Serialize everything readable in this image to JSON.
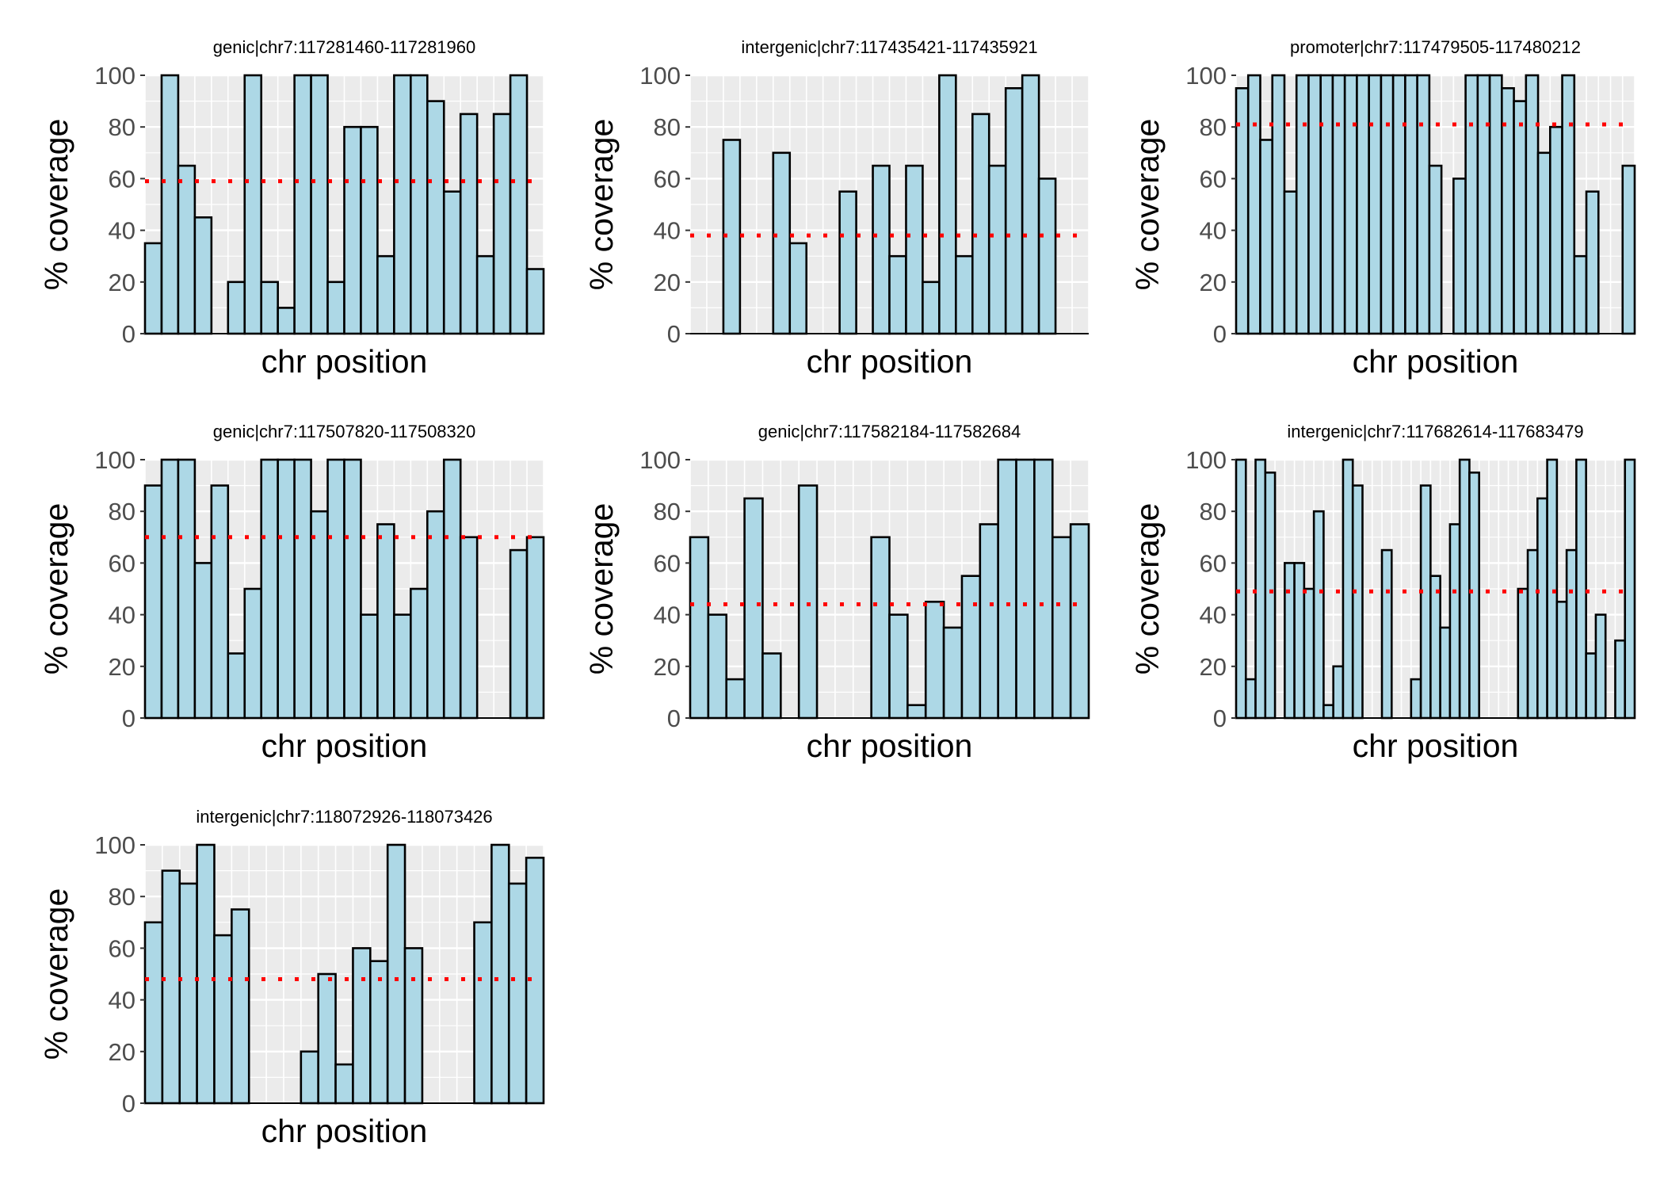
{
  "chart_data": [
    {
      "type": "bar",
      "title": "genic|chr7:117281460-117281960",
      "xlabel": "chr position",
      "ylabel": "% coverage",
      "ylim": [
        0,
        100
      ],
      "yticks": [
        0,
        20,
        40,
        60,
        80,
        100
      ],
      "grid": true,
      "mean_line": 59,
      "values": [
        35,
        100,
        65,
        45,
        null,
        20,
        100,
        20,
        10,
        100,
        100,
        20,
        80,
        80,
        30,
        100,
        100,
        90,
        55,
        85,
        30,
        85,
        100,
        25
      ]
    },
    {
      "type": "bar",
      "title": "intergenic|chr7:117435421-117435921",
      "xlabel": "chr position",
      "ylabel": "% coverage",
      "ylim": [
        0,
        100
      ],
      "yticks": [
        0,
        20,
        40,
        60,
        80,
        100
      ],
      "grid": true,
      "mean_line": 38,
      "values": [
        null,
        null,
        75,
        null,
        null,
        70,
        35,
        null,
        null,
        55,
        null,
        65,
        30,
        65,
        20,
        100,
        30,
        85,
        65,
        95,
        100,
        60,
        null,
        null
      ]
    },
    {
      "type": "bar",
      "title": "promoter|chr7:117479505-117480212",
      "xlabel": "chr position",
      "ylabel": "% coverage",
      "ylim": [
        0,
        100
      ],
      "yticks": [
        0,
        20,
        40,
        60,
        80,
        100
      ],
      "grid": true,
      "mean_line": 81,
      "values": [
        95,
        100,
        75,
        100,
        55,
        100,
        100,
        100,
        100,
        100,
        100,
        100,
        100,
        100,
        100,
        100,
        65,
        null,
        60,
        100,
        100,
        100,
        95,
        90,
        100,
        70,
        80,
        100,
        30,
        55,
        null,
        null,
        65
      ]
    },
    {
      "type": "bar",
      "title": "genic|chr7:117507820-117508320",
      "xlabel": "chr position",
      "ylabel": "% coverage",
      "ylim": [
        0,
        100
      ],
      "yticks": [
        0,
        20,
        40,
        60,
        80,
        100
      ],
      "grid": true,
      "mean_line": 70,
      "values": [
        90,
        100,
        100,
        60,
        90,
        25,
        50,
        100,
        100,
        100,
        80,
        100,
        100,
        40,
        75,
        40,
        50,
        80,
        100,
        70,
        null,
        null,
        65,
        70
      ]
    },
    {
      "type": "bar",
      "title": "genic|chr7:117582184-117582684",
      "xlabel": "chr position",
      "ylabel": "% coverage",
      "ylim": [
        0,
        100
      ],
      "yticks": [
        0,
        20,
        40,
        60,
        80,
        100
      ],
      "grid": true,
      "mean_line": 44,
      "values": [
        70,
        40,
        15,
        85,
        25,
        null,
        90,
        null,
        null,
        null,
        70,
        40,
        5,
        45,
        35,
        55,
        75,
        100,
        100,
        100,
        70,
        75
      ]
    },
    {
      "type": "bar",
      "title": "intergenic|chr7:117682614-117683479",
      "xlabel": "chr position",
      "ylabel": "% coverage",
      "ylim": [
        0,
        100
      ],
      "yticks": [
        0,
        20,
        40,
        60,
        80,
        100
      ],
      "grid": true,
      "mean_line": 49,
      "values": [
        100,
        15,
        100,
        95,
        null,
        60,
        60,
        50,
        80,
        5,
        20,
        100,
        90,
        null,
        null,
        65,
        null,
        null,
        15,
        90,
        55,
        35,
        75,
        100,
        95,
        null,
        null,
        null,
        null,
        50,
        65,
        85,
        100,
        45,
        65,
        100,
        25,
        40,
        null,
        30,
        100
      ]
    },
    {
      "type": "bar",
      "title": "intergenic|chr7:118072926-118073426",
      "xlabel": "chr position",
      "ylabel": "% coverage",
      "ylim": [
        0,
        100
      ],
      "yticks": [
        0,
        20,
        40,
        60,
        80,
        100
      ],
      "grid": true,
      "mean_line": 48,
      "values": [
        70,
        90,
        85,
        100,
        65,
        75,
        null,
        null,
        null,
        20,
        50,
        15,
        60,
        55,
        100,
        60,
        null,
        null,
        null,
        70,
        100,
        85,
        95
      ]
    }
  ],
  "colors": {
    "bar_fill": "#add8e6",
    "bar_stroke": "#000000",
    "panel_background": "#ebebeb",
    "grid": "#ffffff",
    "mean_line": "#ff0000"
  }
}
